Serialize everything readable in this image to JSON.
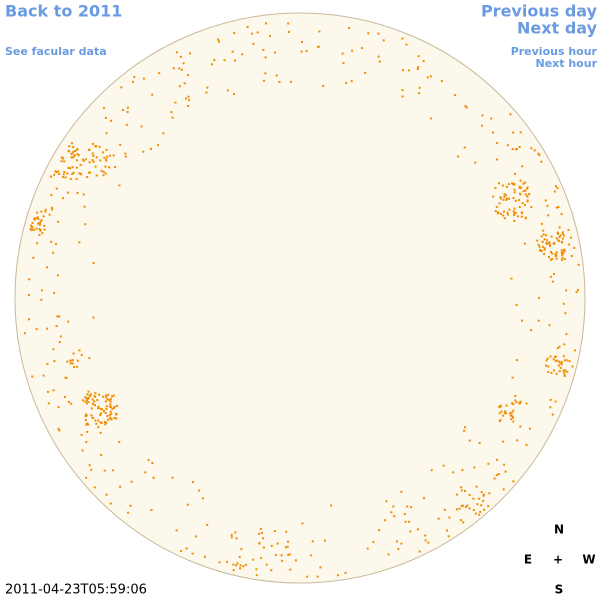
{
  "links": {
    "back": "Back to 2011",
    "facular": "See facular data",
    "previous_day": "Previous day",
    "next_day": "Next day",
    "previous_hour": "Previous hour",
    "next_hour": "Next hour"
  },
  "compass": {
    "north": "N",
    "east": "E",
    "center": "+",
    "west": "W",
    "south": "S"
  },
  "timestamp": "2011-04-23T05:59:06"
}
